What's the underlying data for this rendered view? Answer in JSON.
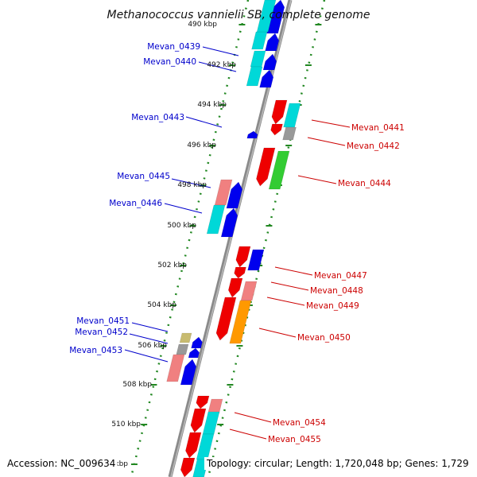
{
  "title": "Methanococcus vannielii SB, complete genome",
  "footer": {
    "accession": "Accession: NC_009634",
    "topology": "Topology: circular; Length: 1,720,048 bp; Genes: 1,729"
  },
  "scale_labels": [
    "490 kbp",
    "492 kbp",
    "494 kbp",
    "496 kbp",
    "498 kbp",
    "500 kbp",
    "502 kbp",
    "504 kbp",
    "506 kbp",
    "508 kbp",
    "510 kbp",
    "kbp"
  ],
  "left_labels": [
    "Mevan_0439",
    "Mevan_0440",
    "Mevan_0443",
    "Mevan_0445",
    "Mevan_0446",
    "Mevan_0451",
    "Mevan_0452",
    "Mevan_0453"
  ],
  "right_labels": [
    "Mevan_0441",
    "Mevan_0442",
    "Mevan_0444",
    "Mevan_0447",
    "Mevan_0448",
    "Mevan_0449",
    "Mevan_0450",
    "Mevan_0454",
    "Mevan_0455"
  ],
  "colors": {
    "left_label": "#0000cc",
    "right_label": "#cc0000",
    "red": "#ee0000",
    "pink": "#f08080",
    "blue": "#0000ee",
    "cyan": "#00d8d8",
    "gray": "#999999",
    "green": "#33cc33",
    "orange": "#ff9900",
    "khaki": "#c8bb70",
    "backbone": "#888888",
    "scale_line": "#228822"
  }
}
